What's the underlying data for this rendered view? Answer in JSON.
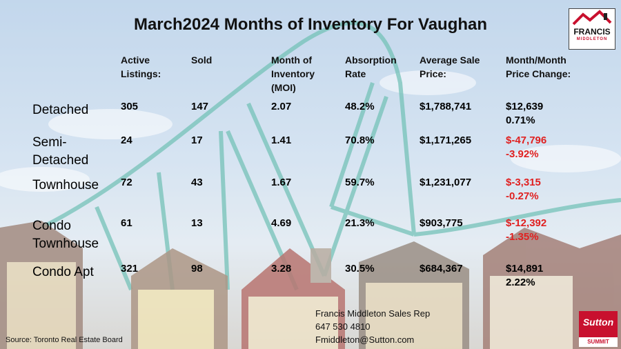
{
  "title": "March2024 Months of Inventory For Vaughan",
  "headers": {
    "active": "Active\nListings:",
    "sold": "Sold",
    "moi": "Month of\nInventory\n(MOI)",
    "absorption": "Absorption\nRate",
    "avg_price": "Average Sale\nPrice:",
    "change": "Month/Month\nPrice Change:"
  },
  "rows": [
    {
      "label": "Detached",
      "active": "305",
      "sold": "147",
      "moi": "2.07",
      "absorption": "48.2%",
      "avg_price": "$1,788,741",
      "change_amount": "$12,639",
      "change_percent": "0.71%"
    },
    {
      "label": "Semi-\nDetached",
      "active": "24",
      "sold": "17",
      "moi": "1.41",
      "absorption": "70.8%",
      "avg_price": "$1,171,265",
      "change_amount": "$-47,796",
      "change_percent": "-3.92%"
    },
    {
      "label": "Townhouse",
      "active": "72",
      "sold": "43",
      "moi": "1.67",
      "absorption": "59.7%",
      "avg_price": "$1,231,077",
      "change_amount": "$-3,315",
      "change_percent": "-0.27%"
    },
    {
      "label": "Condo\nTownhouse",
      "active": "61",
      "sold": "13",
      "moi": "4.69",
      "absorption": "21.3%",
      "avg_price": "$903,775",
      "change_amount": "$-12,392",
      "change_percent": "-1.35%"
    },
    {
      "label": "Condo Apt",
      "active": "321",
      "sold": "98",
      "moi": "3.28",
      "absorption": "30.5%",
      "avg_price": "$684,367",
      "change_amount": "$14,891",
      "change_percent": "2.22%"
    }
  ],
  "contact": {
    "name": "Francis Middleton Sales Rep",
    "phone": "647 530 4810",
    "email": "Fmiddleton@Sutton.com"
  },
  "source": "Source: Toronto Real Estate Board",
  "logos": {
    "fm_name": "FRANCIS",
    "fm_sub": "MIDDLETON",
    "sutton_name": "Sutton",
    "sutton_sub": "SUMMIT"
  },
  "colors": {
    "negative": "#e02020",
    "positive": "#000000",
    "brand_red": "#c8102e"
  }
}
